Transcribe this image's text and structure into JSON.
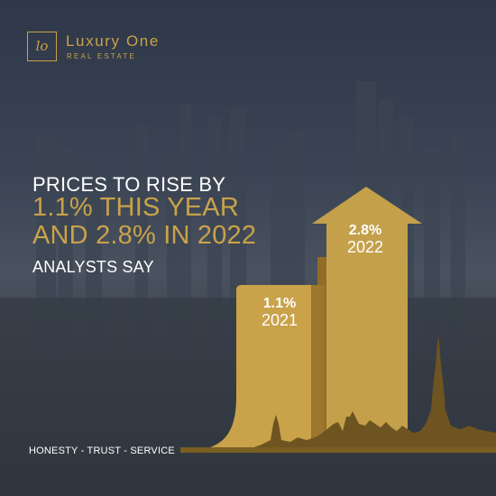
{
  "brand": {
    "monogram": "lo",
    "name": "Luxury One",
    "subtitle": "REAL ESTATE"
  },
  "headline": {
    "line1": "PRICES TO RISE BY",
    "line2": "1.1% THIS YEAR",
    "line3": "AND 2.8% IN 2022",
    "line4": "ANALYSTS SAY"
  },
  "arrows": [
    {
      "percent": "1.1%",
      "year": "2021"
    },
    {
      "percent": "2.8%",
      "year": "2022"
    }
  ],
  "tagline": "HONESTY - TRUST - SERVICE",
  "colors": {
    "gold": "#c9a24a",
    "gold_dark": "#a57f2c",
    "background": "#2f3848",
    "text": "#ffffff"
  }
}
